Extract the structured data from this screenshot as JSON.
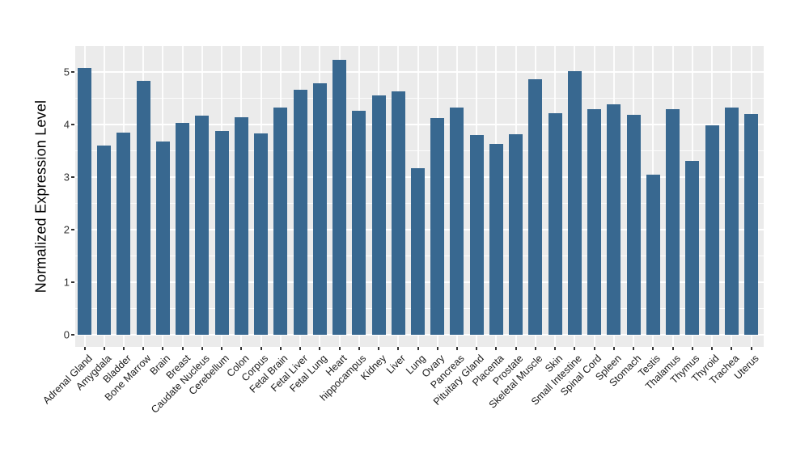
{
  "figure": {
    "background": "#ffffff",
    "y_axis_title": "Normalized Expression Level"
  },
  "chart_data": {
    "type": "bar",
    "title": "",
    "xlabel": "",
    "ylabel": "Normalized Expression Level",
    "categories": [
      "Adrenal Gland",
      "Amygdala",
      "Bladder",
      "Bone Marrow",
      "Brain",
      "Breast",
      "Caudate Nucleus",
      "Cerebellum",
      "Colon",
      "Corpus",
      "Fetal Brain",
      "Fetal Liver",
      "Fetal Lung",
      "Heart",
      "hippocampus",
      "Kidney",
      "Liver",
      "Lung",
      "Ovary",
      "Pancreas",
      "Pituitary Gland",
      "Placenta",
      "Prostate",
      "Skeletal Muscle",
      "Skin",
      "Small Intestine",
      "Spinal Cord",
      "Spleen",
      "Stomach",
      "Testis",
      "Thalamus",
      "Thymus",
      "Thyroid",
      "Trachea",
      "Uterus"
    ],
    "values": [
      5.07,
      3.59,
      3.84,
      4.83,
      3.68,
      4.03,
      4.17,
      3.87,
      4.13,
      3.82,
      4.31,
      4.66,
      4.77,
      5.22,
      4.26,
      4.55,
      4.62,
      3.17,
      4.12,
      4.31,
      3.79,
      3.62,
      3.81,
      4.85,
      4.21,
      5.01,
      4.29,
      4.38,
      4.18,
      3.04,
      4.29,
      3.3,
      3.98,
      4.32,
      4.19
    ],
    "yticks": [
      0,
      1,
      2,
      3,
      4,
      5
    ],
    "minor_yticks": [
      0.5,
      1.5,
      2.5,
      3.5,
      4.5
    ],
    "ylim": [
      -0.26,
      5.49
    ],
    "grid": "on",
    "legend": "none",
    "bar_color": "#386890",
    "panel_background": "#EBEBEB",
    "grid_color": "#FFFFFF",
    "axis_text_color": "#1a1a1a"
  }
}
